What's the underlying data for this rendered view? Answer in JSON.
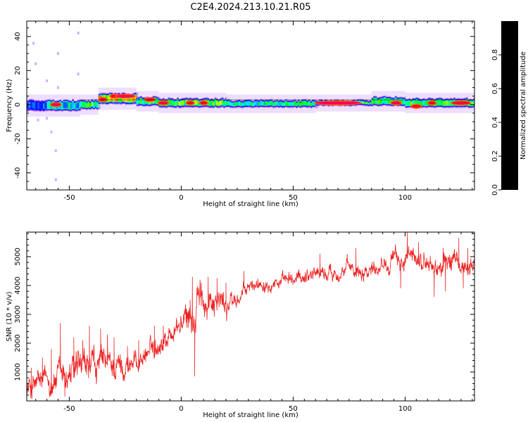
{
  "figure": {
    "title": "C2E4.2024.213.10.21.R05"
  },
  "chart_data": [
    {
      "type": "heatmap",
      "xlabel": "Height of straight line (km)",
      "ylabel": "Frequency (Hz)",
      "xlim": [
        -69,
        131
      ],
      "ylim": [
        -50,
        49
      ],
      "xticks": [
        -50,
        0,
        50,
        100
      ],
      "yticks": [
        -40,
        -20,
        0,
        20,
        40
      ],
      "band": [
        {
          "x0": -69,
          "x1": -60,
          "fmin": -4,
          "fmax": 3,
          "level": 0.35
        },
        {
          "x0": -60,
          "x1": -45,
          "fmin": -4,
          "fmax": 3,
          "level": 0.45
        },
        {
          "x0": -45,
          "x1": -37,
          "fmin": -3,
          "fmax": 3,
          "level": 0.55
        },
        {
          "x0": -37,
          "x1": -20,
          "fmin": 0,
          "fmax": 7,
          "level": 0.8
        },
        {
          "x0": -20,
          "x1": -10,
          "fmin": -1,
          "fmax": 5,
          "level": 0.55
        },
        {
          "x0": -10,
          "x1": 20,
          "fmin": -2,
          "fmax": 4,
          "level": 0.6
        },
        {
          "x0": 20,
          "x1": 60,
          "fmin": -2,
          "fmax": 3,
          "level": 0.5
        },
        {
          "x0": 60,
          "x1": 85,
          "fmin": -1,
          "fmax": 3,
          "level": 0.75
        },
        {
          "x0": 85,
          "x1": 100,
          "fmin": -1,
          "fmax": 5,
          "level": 0.55
        },
        {
          "x0": 100,
          "x1": 131,
          "fmin": -2,
          "fmax": 4,
          "level": 0.55
        }
      ],
      "hotspots": [
        {
          "x": -56,
          "f": 0,
          "w": 4,
          "level": 0.95
        },
        {
          "x": -35,
          "f": 3,
          "w": 3,
          "level": 0.95
        },
        {
          "x": -30,
          "f": 5,
          "w": 3,
          "level": 0.95
        },
        {
          "x": -25,
          "f": 5,
          "w": 8,
          "level": 1.0
        },
        {
          "x": -14,
          "f": 3,
          "w": 4,
          "level": 0.95
        },
        {
          "x": -8,
          "f": 1,
          "w": 4,
          "level": 0.95
        },
        {
          "x": 4,
          "f": 1,
          "w": 3,
          "level": 0.9
        },
        {
          "x": 10,
          "f": 1,
          "w": 3,
          "level": 0.9
        },
        {
          "x": 70,
          "f": 1,
          "w": 20,
          "level": 0.97
        },
        {
          "x": 96,
          "f": 1,
          "w": 4,
          "level": 0.95
        },
        {
          "x": 105,
          "f": -1,
          "w": 4,
          "level": 0.95
        },
        {
          "x": 112,
          "f": 1,
          "w": 3,
          "level": 0.9
        },
        {
          "x": 125,
          "f": 1,
          "w": 8,
          "level": 0.95
        }
      ],
      "outliers": [
        {
          "x": -66,
          "f": 36
        },
        {
          "x": -65,
          "f": 24
        },
        {
          "x": -60,
          "f": 14
        },
        {
          "x": -58,
          "f": -16
        },
        {
          "x": -56,
          "f": -27
        },
        {
          "x": -56,
          "f": -44
        },
        {
          "x": -55,
          "f": 30
        },
        {
          "x": -46,
          "f": 42
        },
        {
          "x": -46,
          "f": 18
        },
        {
          "x": -64,
          "f": -9
        },
        {
          "x": -60,
          "f": -8
        },
        {
          "x": -55,
          "f": 10
        }
      ],
      "colorbar": {
        "label": "Normalized spectral amplitude",
        "range": [
          0,
          1
        ],
        "ticks": [
          "0.0",
          "0.2",
          "0.4",
          "0.6",
          "0.8"
        ],
        "colors": [
          "#ffffff",
          "#cc99ff",
          "#8800ff",
          "#0000ff",
          "#00ffff",
          "#00ff00",
          "#ffff00",
          "#ff7700",
          "#ff0000",
          "#ff0066"
        ]
      }
    },
    {
      "type": "line",
      "xlabel": "Height of straight line (km)",
      "ylabel": "SNR (10 * v/v)",
      "xlim": [
        -69,
        131
      ],
      "ylim": [
        0,
        5850
      ],
      "xticks": [
        -50,
        0,
        50,
        100
      ],
      "yticks": [
        1000,
        2000,
        3000,
        4000,
        5000
      ],
      "color": "#ee2222",
      "series": [
        {
          "x": [
            -69,
            -65,
            -60,
            -55,
            -50,
            -45,
            -40,
            -35,
            -30,
            -25,
            -20,
            -15,
            -10,
            -5,
            0,
            3,
            5,
            6,
            7,
            10,
            15,
            20,
            25,
            30,
            35,
            40,
            45,
            50,
            55,
            60,
            65,
            70,
            75,
            80,
            85,
            90,
            95,
            100,
            105,
            110,
            115,
            120,
            125,
            131
          ],
          "values": [
            400,
            550,
            650,
            750,
            900,
            1000,
            1100,
            1250,
            1200,
            1250,
            1350,
            1700,
            2000,
            2300,
            2650,
            2800,
            3100,
            2200,
            3400,
            3500,
            3600,
            3300,
            3500,
            3900,
            4100,
            4200,
            4100,
            4150,
            4350,
            4500,
            4400,
            4500,
            4550,
            4600,
            4600,
            4800,
            4900,
            4850,
            4900,
            4750,
            4550,
            4900,
            4650,
            4800
          ],
          "noise_amplitude": [
            500,
            500,
            500,
            550,
            600,
            600,
            600,
            550,
            500,
            450,
            400,
            380,
            380,
            380,
            400,
            500,
            700,
            900,
            700,
            550,
            450,
            400,
            300,
            250,
            250,
            250,
            250,
            250,
            280,
            280,
            280,
            280,
            300,
            300,
            300,
            300,
            320,
            350,
            350,
            350,
            350,
            380,
            350,
            300
          ],
          "spikes": [
            {
              "x": -69,
              "y": 600
            },
            {
              "x": -67,
              "y": 1150
            },
            {
              "x": -62,
              "y": 1500
            },
            {
              "x": -58,
              "y": 1800
            },
            {
              "x": -54,
              "y": 2700
            },
            {
              "x": -52,
              "y": 150
            },
            {
              "x": -48,
              "y": 2200
            },
            {
              "x": -44,
              "y": 2100
            },
            {
              "x": -41,
              "y": 2600
            },
            {
              "x": -36,
              "y": 2500
            },
            {
              "x": -33,
              "y": 2300
            },
            {
              "x": -30,
              "y": 2200
            },
            {
              "x": -24,
              "y": 1900
            },
            {
              "x": -19,
              "y": 2100
            },
            {
              "x": -12,
              "y": 2600
            },
            {
              "x": -8,
              "y": 2600
            },
            {
              "x": -2,
              "y": 2800
            },
            {
              "x": 1,
              "y": 3000
            },
            {
              "x": 4,
              "y": 3500
            },
            {
              "x": 5,
              "y": 4300
            },
            {
              "x": 6,
              "y": 850
            },
            {
              "x": 7,
              "y": 3900
            },
            {
              "x": 9,
              "y": 4100
            },
            {
              "x": 12,
              "y": 4300
            },
            {
              "x": 16,
              "y": 4250
            },
            {
              "x": 20,
              "y": 4100
            },
            {
              "x": 28,
              "y": 4500
            },
            {
              "x": 62,
              "y": 5100
            },
            {
              "x": 78,
              "y": 5300
            },
            {
              "x": 98,
              "y": 3900
            },
            {
              "x": 101,
              "y": 5850
            },
            {
              "x": 106,
              "y": 5500
            },
            {
              "x": 113,
              "y": 3600
            },
            {
              "x": 117,
              "y": 5300
            },
            {
              "x": 118,
              "y": 3800
            },
            {
              "x": 124,
              "y": 5650
            },
            {
              "x": 126,
              "y": 3900
            },
            {
              "x": 128,
              "y": 5300
            }
          ]
        }
      ]
    }
  ]
}
